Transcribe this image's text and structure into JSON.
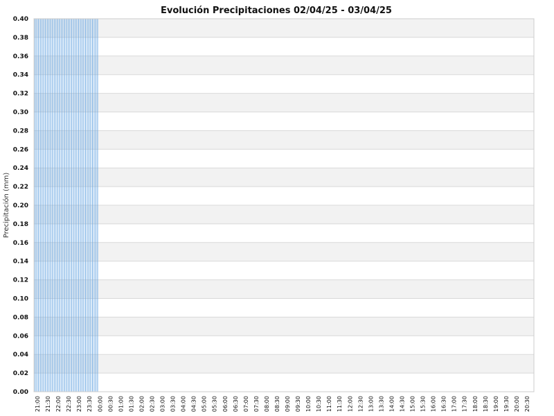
{
  "chart_data": {
    "type": "bar",
    "title": "Evolución Precipitaciones 02/04/25 - 03/04/25",
    "ylabel": "Precipitación (mm)",
    "xlabel": "",
    "ylim": [
      0,
      0.4
    ],
    "y_ticks": [
      "0.00",
      "0.02",
      "0.04",
      "0.06",
      "0.08",
      "0.10",
      "0.12",
      "0.14",
      "0.16",
      "0.18",
      "0.20",
      "0.22",
      "0.24",
      "0.26",
      "0.28",
      "0.30",
      "0.32",
      "0.34",
      "0.36",
      "0.38",
      "0.40"
    ],
    "x_tick_labels": [
      "21:00",
      "21:30",
      "22:00",
      "22:30",
      "23:00",
      "23:30",
      "00:00",
      "00:30",
      "01:00",
      "01:30",
      "02:00",
      "02:30",
      "03:00",
      "03:30",
      "04:00",
      "04:30",
      "05:00",
      "05:30",
      "06:00",
      "06:30",
      "07:00",
      "07:30",
      "08:00",
      "08:30",
      "09:00",
      "09:30",
      "10:00",
      "10:30",
      "11:00",
      "11:30",
      "12:00",
      "12:30",
      "13:00",
      "13:30",
      "14:00",
      "14:30",
      "15:00",
      "15:30",
      "16:00",
      "16:30",
      "17:00",
      "17:30",
      "18:00",
      "18:30",
      "19:00",
      "19:30",
      "20:00",
      "20:30"
    ],
    "bar_interval_minutes": 5,
    "values": [
      0.4,
      0.4,
      0.4,
      0.4,
      0.4,
      0.4,
      0.4,
      0.4,
      0.4,
      0.4,
      0.4,
      0.4,
      0.4,
      0.4,
      0.4,
      0.4,
      0.4,
      0.4,
      0.4,
      0.4,
      0.4,
      0.4,
      0.4,
      0.4,
      0.4,
      0.4,
      0.4,
      0.4,
      0.4,
      0.4,
      0.4,
      0.4,
      0.4,
      0.4,
      0.4,
      0.4,
      0.4
    ],
    "grid": true,
    "legend": "none",
    "colors": {
      "bar": "#6aa7e2",
      "band": "#f2f2f2",
      "grid": "#d9d9d9"
    }
  }
}
